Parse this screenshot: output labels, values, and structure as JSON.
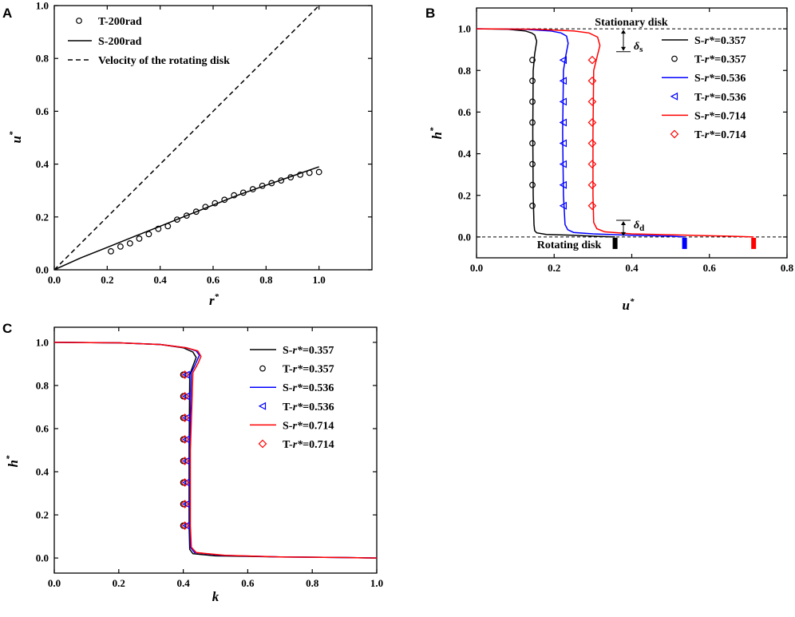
{
  "chart_data": [
    {
      "id": "A",
      "panel_label": "A",
      "type": "line",
      "xlabel": "r*",
      "ylabel": "u*",
      "xlim": [
        0,
        1.2
      ],
      "ylim": [
        0,
        1.0
      ],
      "xticks": [
        "0.0",
        "0.2",
        "0.4",
        "0.6",
        "0.8",
        "1.0"
      ],
      "yticks": [
        "0.0",
        "0.2",
        "0.4",
        "0.6",
        "0.8",
        "1.0"
      ],
      "legend": [
        "T-200rad",
        "S-200rad",
        "Velocity of the rotating disk"
      ],
      "series": [
        {
          "name": "T-200rad",
          "style": "marker-circle",
          "x": [
            0.214,
            0.25,
            0.286,
            0.321,
            0.357,
            0.393,
            0.429,
            0.464,
            0.5,
            0.536,
            0.571,
            0.607,
            0.643,
            0.679,
            0.714,
            0.75,
            0.786,
            0.821,
            0.857,
            0.893,
            0.929,
            0.964,
            1.0
          ],
          "y": [
            0.07,
            0.088,
            0.1,
            0.118,
            0.135,
            0.155,
            0.165,
            0.19,
            0.205,
            0.22,
            0.238,
            0.252,
            0.265,
            0.282,
            0.292,
            0.305,
            0.318,
            0.328,
            0.338,
            0.35,
            0.36,
            0.367,
            0.37
          ]
        },
        {
          "name": "S-200rad",
          "style": "solid",
          "x": [
            0,
            0.1,
            0.2,
            0.3,
            0.4,
            0.5,
            0.6,
            0.7,
            0.8,
            0.9,
            1.0
          ],
          "y": [
            0,
            0.045,
            0.085,
            0.125,
            0.165,
            0.205,
            0.245,
            0.285,
            0.32,
            0.355,
            0.39
          ]
        },
        {
          "name": "Velocity of the rotating disk",
          "style": "dashed",
          "x": [
            0,
            1.0
          ],
          "y": [
            0,
            1.0
          ]
        }
      ]
    },
    {
      "id": "B",
      "panel_label": "B",
      "type": "line",
      "xlabel": "u*",
      "ylabel": "h*",
      "xlim": [
        0,
        0.8
      ],
      "ylim": [
        -0.1,
        1.1
      ],
      "xticks": [
        "0.0",
        "0.2",
        "0.4",
        "0.6",
        "0.8"
      ],
      "yticks": [
        "0.0",
        "0.2",
        "0.4",
        "0.6",
        "0.8",
        "1.0"
      ],
      "annotations": {
        "top": "Stationary disk",
        "bottom": "Rotating disk",
        "delta_s": "δ",
        "delta_s_sub": "s",
        "delta_d": "δ",
        "delta_d_sub": "d"
      },
      "legend": [
        "S-r*=0.357",
        "T-r*=0.357",
        "S-r*=0.536",
        "T-r*=0.536",
        "S-r*=0.714",
        "T-r*=0.714"
      ],
      "series": [
        {
          "name": "S-r*=0.357",
          "color": "#000000",
          "style": "solid",
          "x": [
            0,
            0.08,
            0.125,
            0.142,
            0.15,
            0.155,
            0.15,
            0.146,
            0.145,
            0.146,
            0.148,
            0.15,
            0.155,
            0.18,
            0.25,
            0.3,
            0.357
          ],
          "y": [
            1.0,
            0.998,
            0.99,
            0.98,
            0.97,
            0.94,
            0.88,
            0.8,
            0.5,
            0.2,
            0.06,
            0.03,
            0.02,
            0.012,
            0.008,
            0.004,
            0.0
          ]
        },
        {
          "name": "T-r*=0.357",
          "color": "#000000",
          "style": "marker-circle",
          "x": [
            0.144,
            0.144,
            0.144,
            0.144,
            0.144,
            0.144,
            0.144,
            0.144
          ],
          "y": [
            0.85,
            0.75,
            0.65,
            0.55,
            0.45,
            0.35,
            0.25,
            0.15
          ]
        },
        {
          "name": "S-r*=0.536",
          "color": "#0000ff",
          "style": "solid",
          "x": [
            0,
            0.12,
            0.19,
            0.218,
            0.232,
            0.236,
            0.23,
            0.224,
            0.222,
            0.224,
            0.228,
            0.235,
            0.25,
            0.3,
            0.4,
            0.5,
            0.536
          ],
          "y": [
            1.0,
            0.998,
            0.99,
            0.98,
            0.965,
            0.93,
            0.87,
            0.8,
            0.5,
            0.2,
            0.06,
            0.035,
            0.022,
            0.015,
            0.008,
            0.004,
            0.0
          ]
        },
        {
          "name": "T-r*=0.536",
          "color": "#0000ff",
          "style": "marker-triangle-left",
          "x": [
            0.224,
            0.224,
            0.224,
            0.224,
            0.224,
            0.224,
            0.224,
            0.224
          ],
          "y": [
            0.85,
            0.75,
            0.65,
            0.55,
            0.45,
            0.35,
            0.25,
            0.15
          ]
        },
        {
          "name": "S-r*=0.714",
          "color": "#ff0000",
          "style": "solid",
          "x": [
            0,
            0.15,
            0.25,
            0.29,
            0.312,
            0.318,
            0.31,
            0.302,
            0.3,
            0.3,
            0.302,
            0.31,
            0.33,
            0.4,
            0.55,
            0.65,
            0.714
          ],
          "y": [
            1.0,
            0.998,
            0.99,
            0.98,
            0.96,
            0.92,
            0.86,
            0.8,
            0.5,
            0.2,
            0.07,
            0.04,
            0.025,
            0.015,
            0.008,
            0.004,
            0.0
          ]
        },
        {
          "name": "T-r*=0.714",
          "color": "#ff0000",
          "style": "marker-diamond",
          "x": [
            0.298,
            0.298,
            0.298,
            0.298,
            0.298,
            0.298,
            0.298,
            0.298
          ],
          "y": [
            0.85,
            0.75,
            0.65,
            0.55,
            0.45,
            0.35,
            0.25,
            0.15
          ]
        }
      ],
      "disk_marks": [
        {
          "x": 0.357,
          "color": "#000000"
        },
        {
          "x": 0.536,
          "color": "#0000ff"
        },
        {
          "x": 0.714,
          "color": "#ff0000"
        }
      ]
    },
    {
      "id": "C",
      "panel_label": "C",
      "type": "line",
      "xlabel": "k",
      "ylabel": "h*",
      "xlim": [
        0,
        1.0
      ],
      "ylim": [
        -0.07,
        1.07
      ],
      "xticks": [
        "0.0",
        "0.2",
        "0.4",
        "0.6",
        "0.8",
        "1.0"
      ],
      "yticks": [
        "0.0",
        "0.2",
        "0.4",
        "0.6",
        "0.8",
        "1.0"
      ],
      "legend": [
        "S-r*=0.357",
        "T-r*=0.357",
        "S-r*=0.536",
        "T-r*=0.536",
        "S-r*=0.714",
        "T-r*=0.714"
      ],
      "series": [
        {
          "name": "S-r*=0.357",
          "color": "#000000",
          "style": "solid",
          "x": [
            0,
            0.2,
            0.33,
            0.4,
            0.43,
            0.44,
            0.43,
            0.42,
            0.418,
            0.418,
            0.42,
            0.43,
            0.5,
            0.7,
            0.9,
            1.0
          ],
          "y": [
            1.0,
            0.998,
            0.99,
            0.975,
            0.955,
            0.93,
            0.89,
            0.85,
            0.5,
            0.15,
            0.04,
            0.02,
            0.01,
            0.005,
            0.002,
            0.0
          ]
        },
        {
          "name": "T-r*=0.357",
          "color": "#000000",
          "style": "marker-circle",
          "x": [
            0.4,
            0.4,
            0.4,
            0.4,
            0.4,
            0.4,
            0.4,
            0.4
          ],
          "y": [
            0.85,
            0.75,
            0.65,
            0.55,
            0.45,
            0.35,
            0.25,
            0.15
          ]
        },
        {
          "name": "S-r*=0.536",
          "color": "#0000ff",
          "style": "solid",
          "x": [
            0,
            0.2,
            0.33,
            0.41,
            0.44,
            0.45,
            0.438,
            0.425,
            0.42,
            0.42,
            0.422,
            0.435,
            0.52,
            0.7,
            0.9,
            1.0
          ],
          "y": [
            1.0,
            0.998,
            0.99,
            0.975,
            0.96,
            0.94,
            0.9,
            0.86,
            0.5,
            0.15,
            0.05,
            0.025,
            0.012,
            0.005,
            0.002,
            0.0
          ]
        },
        {
          "name": "T-r*=0.536",
          "color": "#0000ff",
          "style": "marker-triangle-left",
          "x": [
            0.41,
            0.41,
            0.41,
            0.41,
            0.41,
            0.41,
            0.41,
            0.41
          ],
          "y": [
            0.85,
            0.75,
            0.65,
            0.55,
            0.45,
            0.35,
            0.25,
            0.15
          ]
        },
        {
          "name": "S-r*=0.714",
          "color": "#ff0000",
          "style": "solid",
          "x": [
            0,
            0.2,
            0.33,
            0.41,
            0.445,
            0.455,
            0.445,
            0.43,
            0.422,
            0.422,
            0.425,
            0.44,
            0.53,
            0.7,
            0.9,
            1.0
          ],
          "y": [
            1.0,
            0.998,
            0.99,
            0.975,
            0.96,
            0.935,
            0.9,
            0.86,
            0.5,
            0.15,
            0.05,
            0.025,
            0.012,
            0.005,
            0.002,
            0.0
          ]
        },
        {
          "name": "T-r*=0.714",
          "color": "#ff0000",
          "style": "marker-diamond",
          "x": [
            0.405,
            0.405,
            0.405,
            0.405,
            0.405,
            0.405,
            0.405,
            0.405
          ],
          "y": [
            0.85,
            0.75,
            0.65,
            0.55,
            0.45,
            0.35,
            0.25,
            0.15
          ]
        }
      ]
    }
  ]
}
